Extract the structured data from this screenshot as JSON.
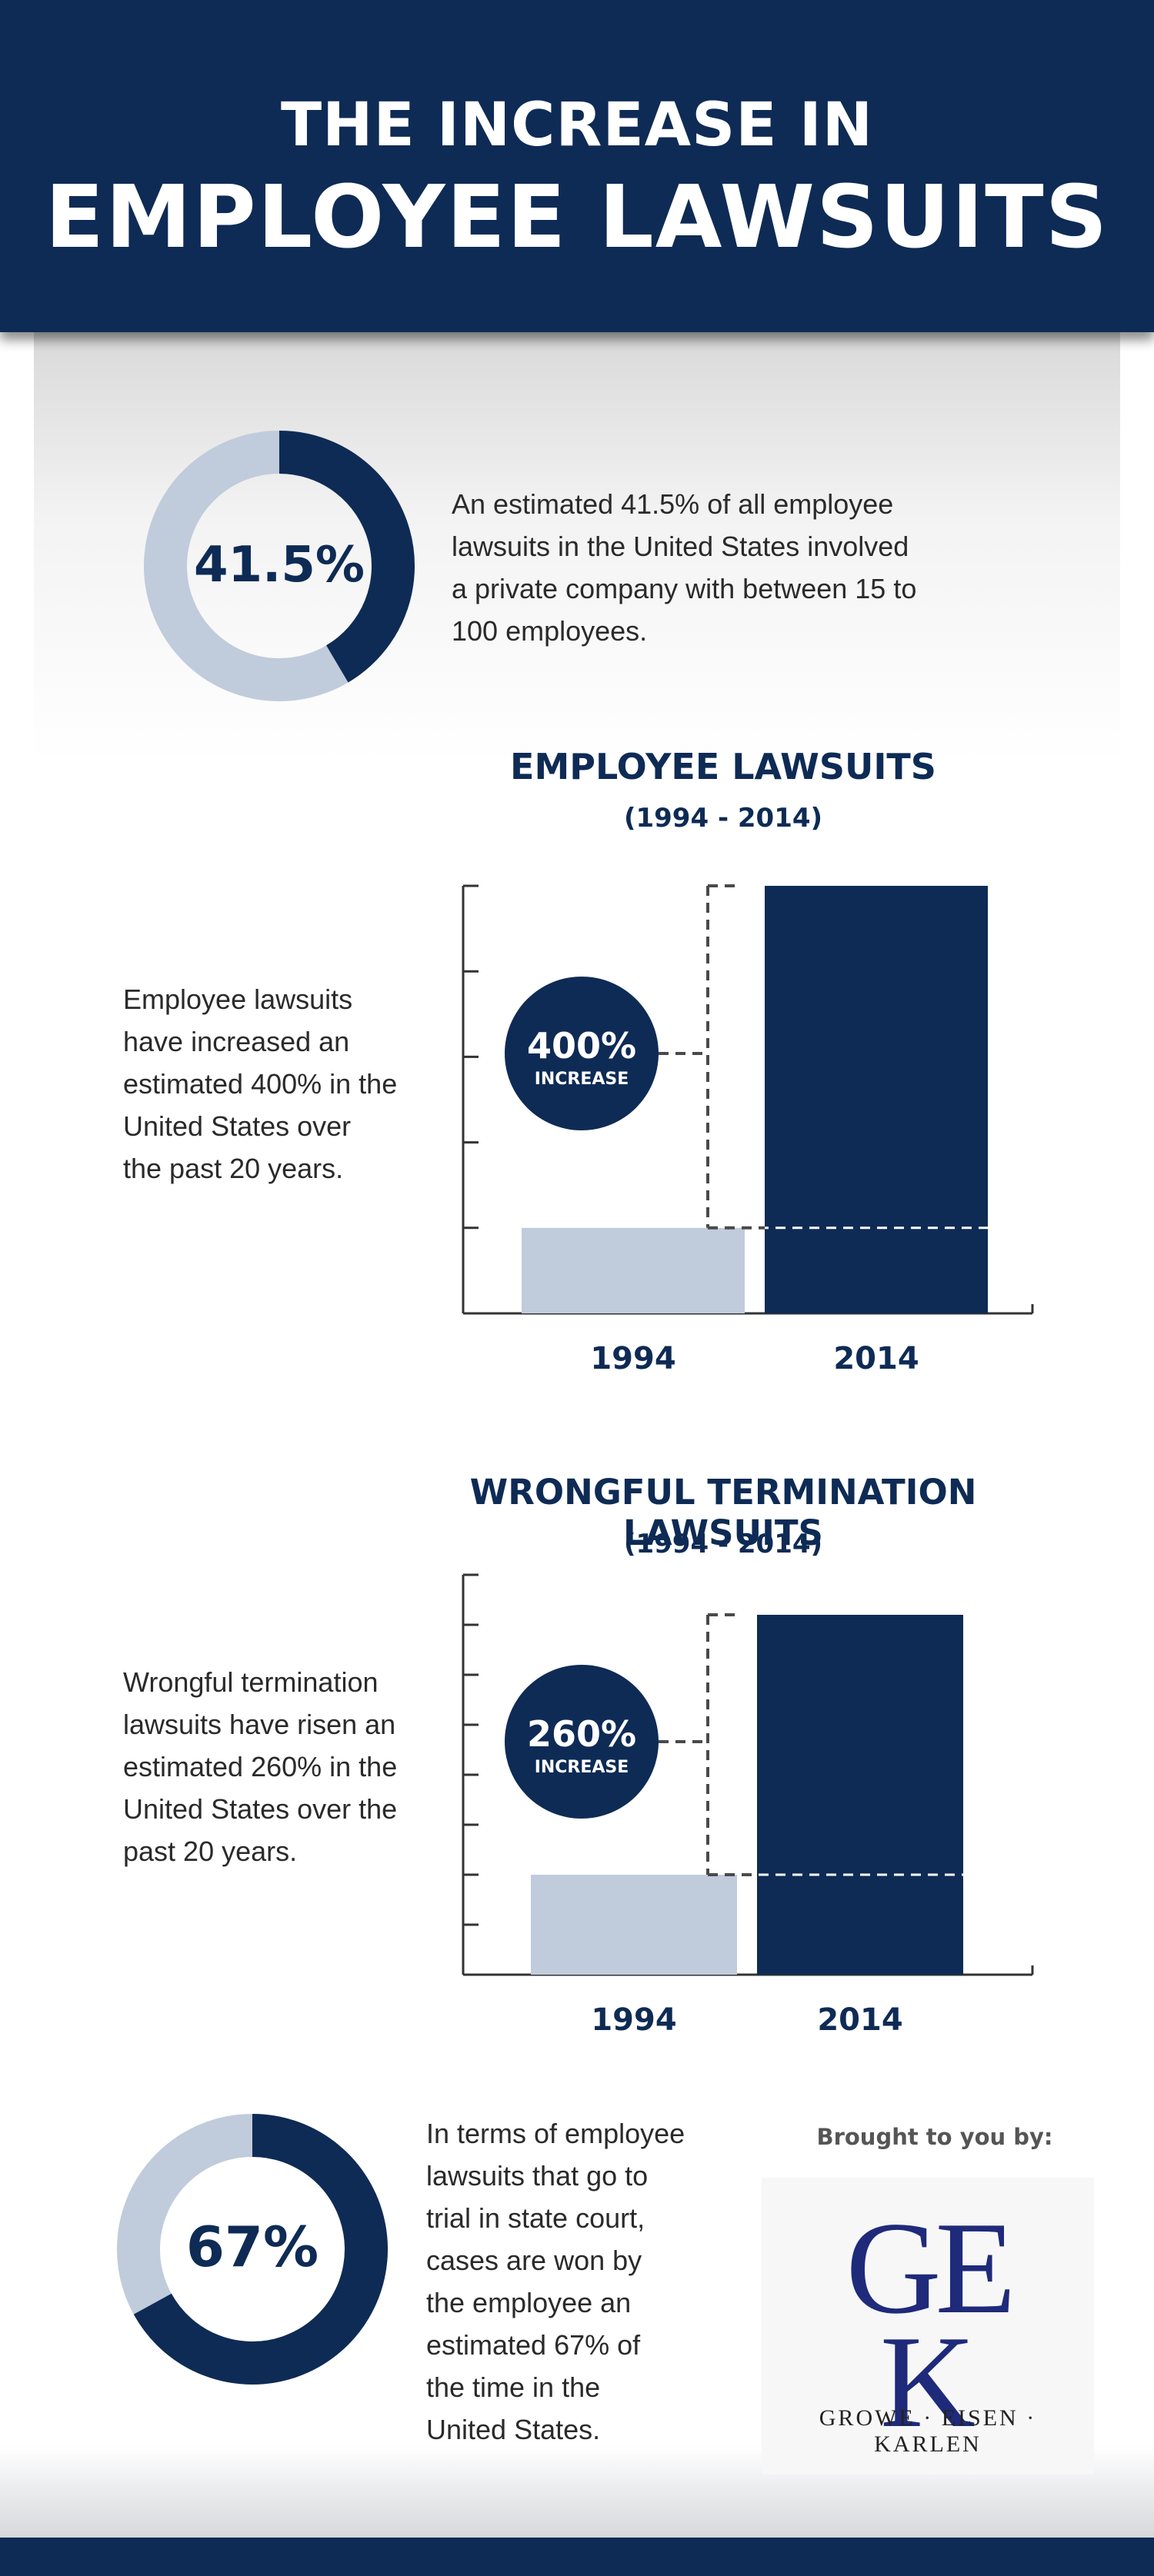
{
  "header": {
    "line1": "THE INCREASE IN",
    "line2": "EMPLOYEE LAWSUITS"
  },
  "stat1": {
    "value_label": "41.5%",
    "percent": 41.5,
    "text_lines": [
      "An estimated 41.5% of all employee",
      "lawsuits in the United States involved",
      "a private company with between 15 to",
      "100 employees."
    ]
  },
  "chart1_text": {
    "lines": [
      "Employee lawsuits",
      "have increased an",
      "estimated 400% in the",
      "United States over",
      "the past 20 years."
    ]
  },
  "chart2_text": {
    "lines": [
      "Wrongful termination",
      "lawsuits have risen an",
      "estimated 260% in the",
      "United States over the",
      "past 20 years."
    ]
  },
  "stat2": {
    "value_label": "67%",
    "percent": 67,
    "text_lines": [
      "In terms of employee",
      "lawsuits that go to",
      "trial in state court,",
      "cases are won by",
      "the employee an",
      "estimated 67% of",
      "the time in the",
      "United States."
    ]
  },
  "sponsor": {
    "brought_label": "Brought to you by:",
    "monogram_top": "GE",
    "monogram_bottom": "K",
    "firm_name": "GROWE · EISEN · KARLEN"
  },
  "colors": {
    "navy": "#0e2b55",
    "light_blue": "#c0ccdb",
    "axis": "#333333"
  },
  "chart_data": [
    {
      "type": "bar",
      "title": "EMPLOYEE LAWSUITS",
      "subtitle": "(1994 - 2014)",
      "categories": [
        "1994",
        "2014"
      ],
      "values": [
        1,
        5
      ],
      "ylim": [
        0,
        5
      ],
      "yticks": 5,
      "annotation": {
        "value": "400%",
        "label": "INCREASE"
      },
      "grid": false
    },
    {
      "type": "bar",
      "title": "WRONGFUL TERMINATION LAWSUITS",
      "subtitle": "(1994 - 2014)",
      "categories": [
        "1994",
        "2014"
      ],
      "values": [
        2,
        7.2
      ],
      "ylim": [
        0,
        8
      ],
      "yticks": 8,
      "annotation": {
        "value": "260%",
        "label": "INCREASE"
      },
      "grid": false
    }
  ]
}
